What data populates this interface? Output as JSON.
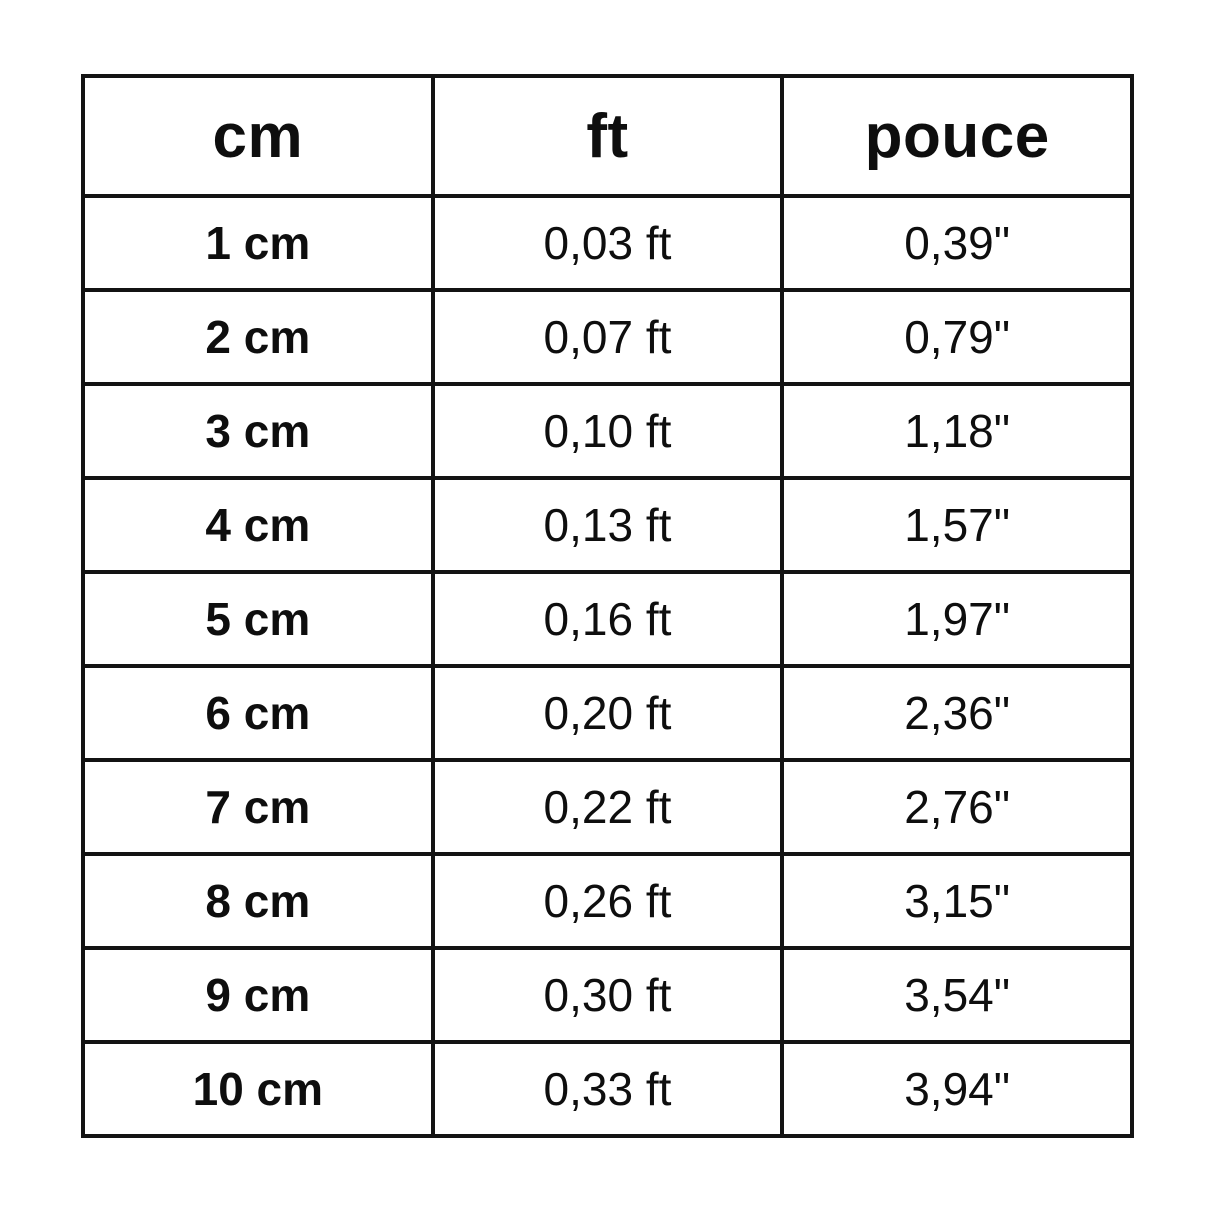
{
  "table": {
    "headers": [
      "cm",
      "ft",
      "pouce"
    ],
    "rows": [
      {
        "cm": "1 cm",
        "ft": "0,03 ft",
        "pouce": "0,39\""
      },
      {
        "cm": "2 cm",
        "ft": "0,07 ft",
        "pouce": "0,79\""
      },
      {
        "cm": "3 cm",
        "ft": "0,10 ft",
        "pouce": "1,18\""
      },
      {
        "cm": "4 cm",
        "ft": "0,13 ft",
        "pouce": "1,57\""
      },
      {
        "cm": "5 cm",
        "ft": "0,16 ft",
        "pouce": "1,97\""
      },
      {
        "cm": "6 cm",
        "ft": "0,20 ft",
        "pouce": "2,36\""
      },
      {
        "cm": "7 cm",
        "ft": "0,22 ft",
        "pouce": "2,76\""
      },
      {
        "cm": "8 cm",
        "ft": "0,26 ft",
        "pouce": "3,15\""
      },
      {
        "cm": "9 cm",
        "ft": "0,30 ft",
        "pouce": "3,54\""
      },
      {
        "cm": "10 cm",
        "ft": "0,33 ft",
        "pouce": "3,94\""
      }
    ]
  },
  "chart_data": {
    "type": "table",
    "title": "",
    "columns": [
      "cm",
      "ft",
      "pouce"
    ],
    "rows": [
      [
        "1 cm",
        "0,03 ft",
        "0,39\""
      ],
      [
        "2 cm",
        "0,07 ft",
        "0,79\""
      ],
      [
        "3 cm",
        "0,10 ft",
        "1,18\""
      ],
      [
        "4 cm",
        "0,13 ft",
        "1,57\""
      ],
      [
        "5 cm",
        "0,16 ft",
        "1,97\""
      ],
      [
        "6 cm",
        "0,20 ft",
        "2,36\""
      ],
      [
        "7 cm",
        "0,22 ft",
        "2,76\""
      ],
      [
        "8 cm",
        "0,26 ft",
        "3,15\""
      ],
      [
        "9 cm",
        "0,30 ft",
        "3,54\""
      ],
      [
        "10 cm",
        "0,33 ft",
        "3,94\""
      ]
    ],
    "numeric": {
      "cm": [
        1,
        2,
        3,
        4,
        5,
        6,
        7,
        8,
        9,
        10
      ],
      "ft": [
        0.03,
        0.07,
        0.1,
        0.13,
        0.16,
        0.2,
        0.22,
        0.26,
        0.3,
        0.33
      ],
      "pouce_inches": [
        0.39,
        0.79,
        1.18,
        1.57,
        1.97,
        2.36,
        2.76,
        3.15,
        3.54,
        3.94
      ]
    }
  },
  "colors": {
    "background": "#ffffff",
    "border": "#131313",
    "text": "#0e0e0e"
  }
}
